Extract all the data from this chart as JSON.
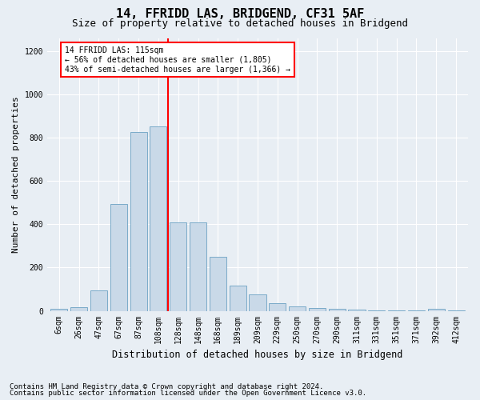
{
  "title": "14, FFRIDD LAS, BRIDGEND, CF31 5AF",
  "subtitle": "Size of property relative to detached houses in Bridgend",
  "xlabel": "Distribution of detached houses by size in Bridgend",
  "ylabel": "Number of detached properties",
  "footer_line1": "Contains HM Land Registry data © Crown copyright and database right 2024.",
  "footer_line2": "Contains public sector information licensed under the Open Government Licence v3.0.",
  "bar_labels": [
    "6sqm",
    "26sqm",
    "47sqm",
    "67sqm",
    "87sqm",
    "108sqm",
    "128sqm",
    "148sqm",
    "168sqm",
    "189sqm",
    "209sqm",
    "229sqm",
    "250sqm",
    "270sqm",
    "290sqm",
    "311sqm",
    "331sqm",
    "351sqm",
    "371sqm",
    "392sqm",
    "412sqm"
  ],
  "bar_values": [
    8,
    15,
    95,
    495,
    825,
    850,
    410,
    410,
    250,
    115,
    75,
    35,
    20,
    12,
    10,
    5,
    3,
    2,
    1,
    8,
    2
  ],
  "bar_color": "#c9d9e8",
  "bar_edge_color": "#7aaac8",
  "annotation_line_bin": 5.5,
  "annotation_text_line1": "14 FFRIDD LAS: 115sqm",
  "annotation_text_line2": "← 56% of detached houses are smaller (1,805)",
  "annotation_text_line3": "43% of semi-detached houses are larger (1,366) →",
  "ylim": [
    0,
    1260
  ],
  "yticks": [
    0,
    200,
    400,
    600,
    800,
    1000,
    1200
  ],
  "background_color": "#e8eef4",
  "plot_background": "#e8eef4",
  "grid_color": "#ffffff",
  "title_fontsize": 11,
  "subtitle_fontsize": 9,
  "axis_label_fontsize": 8,
  "tick_fontsize": 7,
  "footer_fontsize": 6.5
}
